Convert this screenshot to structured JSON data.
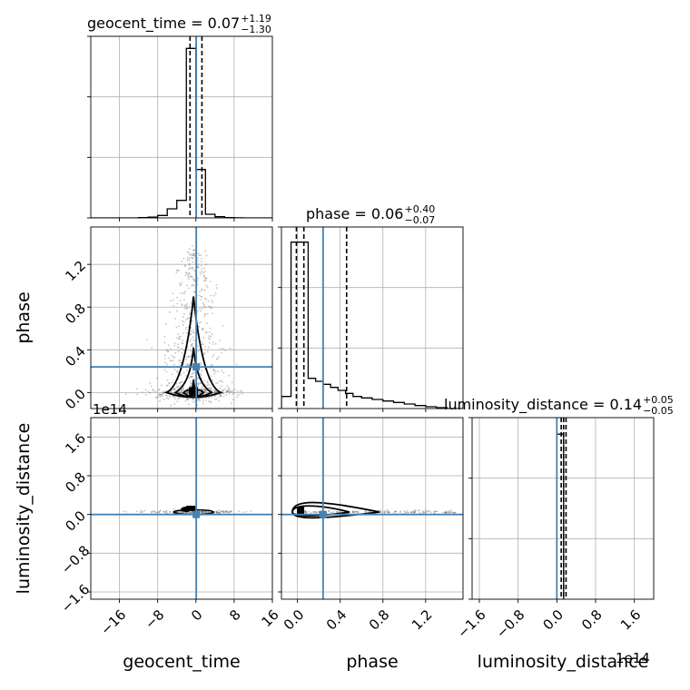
{
  "colors": {
    "truth": "#4682b4",
    "grid": "#b0b0b0",
    "ink": "#000000",
    "points": "#555555"
  },
  "chart_data": {
    "type": "corner",
    "parameters": [
      "geocent_time",
      "phase",
      "luminosity_distance"
    ],
    "truths": {
      "geocent_time": 0.07,
      "phase": 0.24,
      "luminosity_distance": 0.0
    },
    "ranges": {
      "geocent_time": [
        -22,
        16
      ],
      "phase": [
        -0.15,
        1.55
      ],
      "luminosity_distance": [
        -1.75,
        2.0
      ]
    },
    "ticks": {
      "geocent_time": {
        "values": [
          -16,
          -8,
          0,
          8,
          16
        ],
        "labels": [
          "−16",
          "−8",
          "0",
          "8",
          "16"
        ]
      },
      "phase": {
        "values": [
          0.0,
          0.4,
          0.8,
          1.2
        ],
        "labels": [
          "0.0",
          "0.4",
          "0.8",
          "1.2"
        ]
      },
      "luminosity_distance": {
        "values": [
          -1.6,
          -0.8,
          0.0,
          0.8,
          1.6
        ],
        "labels": [
          "−1.6",
          "−0.8",
          "0.0",
          "0.8",
          "1.6"
        ]
      }
    },
    "scale_note": "1e14",
    "titles": [
      {
        "param": "geocent_time",
        "name": "geocent_time",
        "median": "0.07",
        "plus": "+1.19",
        "minus": "−1.30"
      },
      {
        "param": "phase",
        "name": "phase",
        "median": "0.06",
        "plus": "+0.40",
        "minus": "−0.07"
      },
      {
        "param": "luminosity_distance",
        "name": "luminosity_distance",
        "median": "0.14",
        "plus": "+0.05",
        "minus": "−0.05"
      }
    ],
    "histograms": {
      "geocent_time": {
        "bin_edges": [
          -22,
          -20,
          -18,
          -16,
          -14,
          -12,
          -10,
          -8,
          -6,
          -4,
          -2,
          0,
          2,
          4,
          6,
          8,
          10,
          12,
          14,
          16
        ],
        "counts": [
          0,
          0,
          0,
          0,
          0,
          0.5,
          1.2,
          4,
          15,
          29,
          280,
          80,
          6,
          2,
          0.6,
          0.2,
          0,
          0,
          0
        ],
        "ymax": 300,
        "quantiles": [
          -1.23,
          0.07,
          1.26
        ]
      },
      "phase": {
        "bin_edges": [
          -0.15,
          -0.06,
          0.03,
          0.1,
          0.17,
          0.24,
          0.31,
          0.38,
          0.45,
          0.52,
          0.6,
          0.7,
          0.8,
          0.9,
          1.0,
          1.1,
          1.2,
          1.3,
          1.4,
          1.55
        ],
        "counts": [
          4,
          55,
          55,
          10,
          9,
          8,
          7,
          6,
          5,
          4,
          3.5,
          3,
          2.5,
          2,
          1.5,
          1,
          0.6,
          0.3,
          0
        ],
        "ymax": 60,
        "quantiles": [
          -0.01,
          0.06,
          0.46
        ]
      },
      "luminosity_distance": {
        "bin_edges": [
          0.0,
          0.14
        ],
        "counts": [
          100
        ],
        "ymax": 110,
        "quantiles": [
          0.09,
          0.14,
          0.19
        ]
      }
    }
  }
}
